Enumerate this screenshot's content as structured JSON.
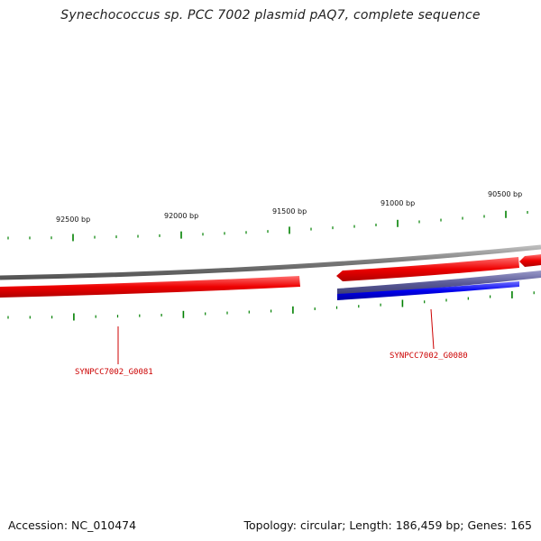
{
  "title": "Synechococcus sp. PCC 7002 plasmid pAQ7, complete sequence",
  "footer": {
    "accession": "Accession: NC_010474",
    "summary": "Topology: circular; Length: 186,459 bp; Genes: 165"
  },
  "colors": {
    "forward_gene": "#ff0000",
    "reverse_gene": "#0000ff",
    "backbone": "#888888",
    "tick": "#008000",
    "label": "#cc0000"
  },
  "scale_labels": [
    "92500 bp",
    "92000 bp",
    "91500 bp",
    "91000 bp",
    "90500 bp"
  ],
  "genes": [
    {
      "label": "SYNPCC7002_G0081",
      "strand": "forward"
    },
    {
      "label": "SYNPCC7002_G0080",
      "strand": "forward"
    }
  ]
}
